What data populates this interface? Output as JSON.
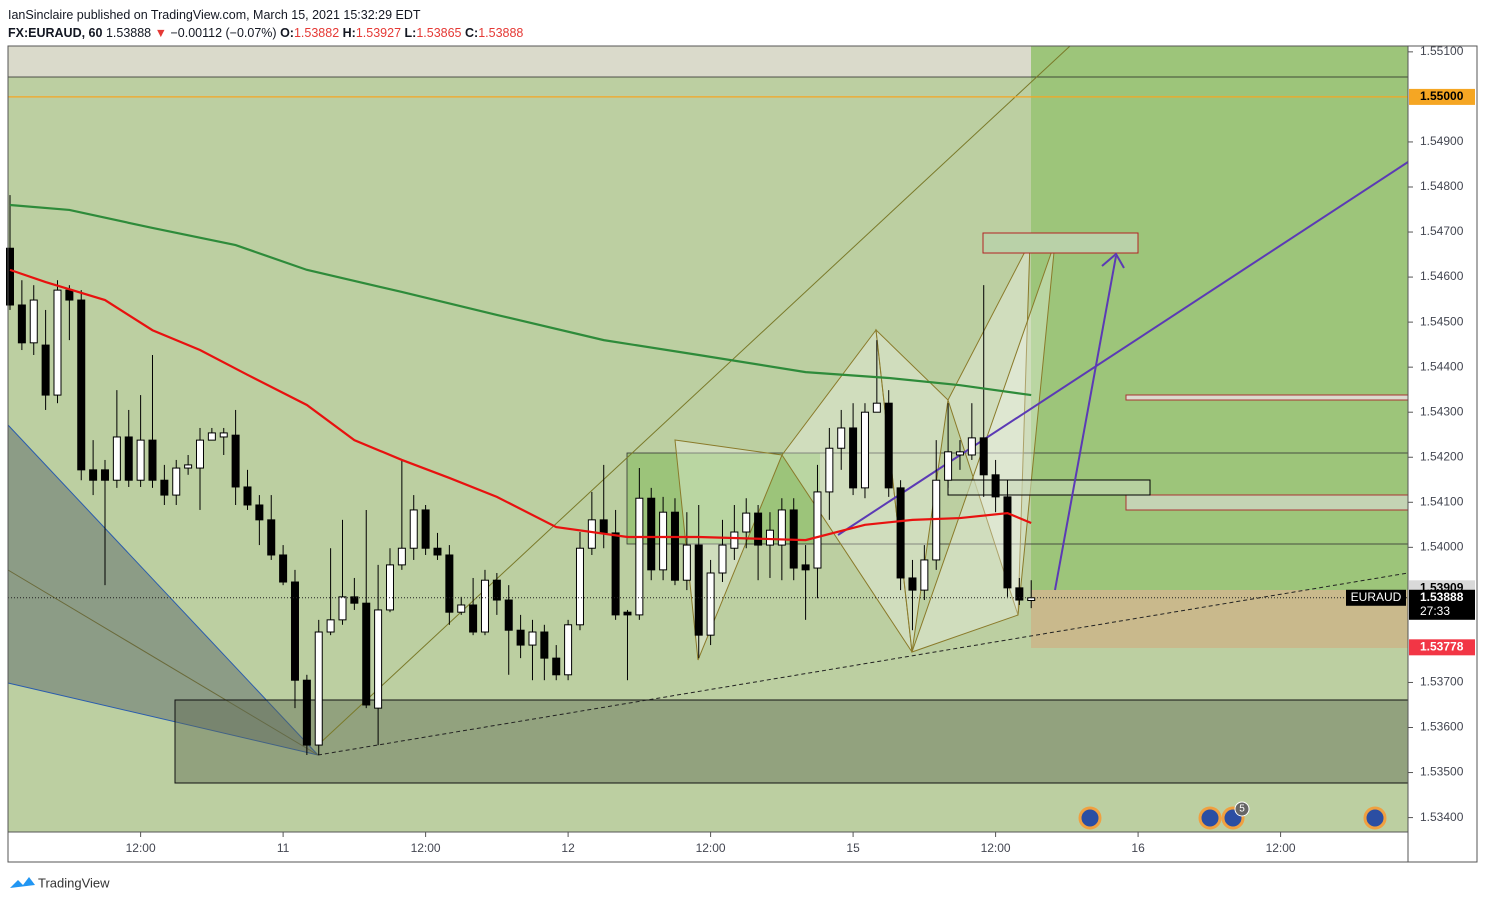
{
  "header": {
    "publisher": "IanSinclaire published on TradingView.com, March 15, 2021 15:32:29 EDT",
    "symbol": "FX:EURAUD, 60",
    "arrow": "▼",
    "change": "−0.00112 (−0.07%)",
    "o_label": "O:",
    "h_label": "H:",
    "l_label": "L:",
    "c_label": "C:"
  },
  "chart_data": {
    "type": "candlestick",
    "candles": [
      [
        1.54664,
        1.54782,
        1.54527,
        1.54538
      ],
      [
        1.54538,
        1.54593,
        1.54438,
        1.54454
      ],
      [
        1.54454,
        1.54582,
        1.54427,
        1.54549
      ],
      [
        1.54449,
        1.54527,
        1.54305,
        1.54338
      ],
      [
        1.54338,
        1.54593,
        1.5432,
        1.54571
      ],
      [
        1.54571,
        1.54582,
        1.5446,
        1.54549
      ],
      [
        1.54549,
        1.54571,
        1.54149,
        1.54172
      ],
      [
        1.54172,
        1.54238,
        1.54116,
        1.54149
      ],
      [
        1.54172,
        1.54194,
        1.53916,
        1.54149
      ],
      [
        1.54149,
        1.54349,
        1.54132,
        1.54245
      ],
      [
        1.54245,
        1.54305,
        1.54134,
        1.54149
      ],
      [
        1.54149,
        1.54338,
        1.54134,
        1.54238
      ],
      [
        1.54238,
        1.54427,
        1.54132,
        1.54149
      ],
      [
        1.54149,
        1.54183,
        1.54094,
        1.54116
      ],
      [
        1.54116,
        1.54194,
        1.54094,
        1.54176
      ],
      [
        1.54176,
        1.54205,
        1.54161,
        1.54183
      ],
      [
        1.54176,
        1.54265,
        1.54083,
        1.54238
      ],
      [
        1.54238,
        1.54265,
        1.54238,
        1.54254
      ],
      [
        1.54245,
        1.54265,
        1.54205,
        1.54254
      ],
      [
        1.54249,
        1.54305,
        1.54094,
        1.54134
      ],
      [
        1.54134,
        1.54172,
        1.54083,
        1.54094
      ],
      [
        1.54094,
        1.54116,
        1.54005,
        1.54061
      ],
      [
        1.54061,
        1.54116,
        1.53972,
        1.53983
      ],
      [
        1.53983,
        1.54005,
        1.53916,
        1.53923
      ],
      [
        1.53923,
        1.5395,
        1.53643,
        1.53705
      ],
      [
        1.53705,
        1.53717,
        1.53539,
        1.53561
      ],
      [
        1.53561,
        1.53839,
        1.53539,
        1.53812
      ],
      [
        1.53812,
        1.53998,
        1.53805,
        1.53839
      ],
      [
        1.53839,
        1.54061,
        1.53828,
        1.5389
      ],
      [
        1.5389,
        1.53932,
        1.53861,
        1.53876
      ],
      [
        1.53876,
        1.54083,
        1.53643,
        1.5365
      ],
      [
        1.53643,
        1.53961,
        1.53561,
        1.53861
      ],
      [
        1.53861,
        1.53998,
        1.53856,
        1.53961
      ],
      [
        1.53961,
        1.54194,
        1.5395,
        1.53998
      ],
      [
        1.53998,
        1.54116,
        1.53972,
        1.54083
      ],
      [
        1.54083,
        1.54094,
        1.53983,
        1.53998
      ],
      [
        1.53998,
        1.54032,
        1.53972,
        1.53983
      ],
      [
        1.53983,
        1.54005,
        1.53828,
        1.53856
      ],
      [
        1.53856,
        1.5389,
        1.5385,
        1.53872
      ],
      [
        1.53872,
        1.53932,
        1.53805,
        1.53812
      ],
      [
        1.53812,
        1.5395,
        1.53805,
        1.53927
      ],
      [
        1.53927,
        1.53943,
        1.5385,
        1.53883
      ],
      [
        1.53883,
        1.53916,
        1.53717,
        1.53816
      ],
      [
        1.53816,
        1.5385,
        1.53754,
        1.53783
      ],
      [
        1.53783,
        1.53839,
        1.53705,
        1.53812
      ],
      [
        1.53812,
        1.53828,
        1.53705,
        1.53754
      ],
      [
        1.53754,
        1.53783,
        1.53705,
        1.53717
      ],
      [
        1.53717,
        1.53839,
        1.53705,
        1.53828
      ],
      [
        1.53828,
        1.54034,
        1.53816,
        1.53998
      ],
      [
        1.53998,
        1.54123,
        1.53983,
        1.54061
      ],
      [
        1.54061,
        1.54183,
        1.53998,
        1.54032
      ],
      [
        1.54032,
        1.54083,
        1.53839,
        1.5385
      ],
      [
        1.53856,
        1.53861,
        1.53705,
        1.5385
      ],
      [
        1.5385,
        1.54176,
        1.53839,
        1.54109
      ],
      [
        1.54109,
        1.54132,
        1.53927,
        1.5395
      ],
      [
        1.5395,
        1.54112,
        1.53927,
        1.54078
      ],
      [
        1.54078,
        1.54109,
        1.53916,
        1.53927
      ],
      [
        1.53927,
        1.54078,
        1.53905,
        1.54005
      ],
      [
        1.54005,
        1.54094,
        1.53754,
        1.53805
      ],
      [
        1.53805,
        1.53972,
        1.53783,
        1.53943
      ],
      [
        1.53943,
        1.54061,
        1.53923,
        1.54005
      ],
      [
        1.53998,
        1.54094,
        1.53972,
        1.54034
      ],
      [
        1.54034,
        1.54109,
        1.53998,
        1.54076
      ],
      [
        1.54076,
        1.54094,
        1.53927,
        1.54005
      ],
      [
        1.54005,
        1.54078,
        1.53932,
        1.54038
      ],
      [
        1.54005,
        1.54109,
        1.53927,
        1.54083
      ],
      [
        1.54083,
        1.54109,
        1.53927,
        1.53954
      ],
      [
        1.53961,
        1.54005,
        1.53839,
        1.5395
      ],
      [
        1.53954,
        1.54183,
        1.53887,
        1.54123
      ],
      [
        1.54123,
        1.54265,
        1.54061,
        1.5422
      ],
      [
        1.5422,
        1.54305,
        1.54172,
        1.54265
      ],
      [
        1.54265,
        1.5432,
        1.54116,
        1.54132
      ],
      [
        1.54132,
        1.5432,
        1.54109,
        1.543
      ],
      [
        1.543,
        1.5446,
        1.543,
        1.5432
      ],
      [
        1.5432,
        1.54349,
        1.54112,
        1.54132
      ],
      [
        1.54132,
        1.54149,
        1.53905,
        1.53932
      ],
      [
        1.53932,
        1.53972,
        1.53816,
        1.53905
      ],
      [
        1.53905,
        1.54005,
        1.53883,
        1.53972
      ],
      [
        1.53972,
        1.54238,
        1.5395,
        1.54149
      ],
      [
        1.54149,
        1.5432,
        1.54132,
        1.54212
      ],
      [
        1.54205,
        1.54238,
        1.54172,
        1.54212
      ],
      [
        1.54205,
        1.5432,
        1.54194,
        1.54243
      ],
      [
        1.54243,
        1.54582,
        1.54112,
        1.54161
      ],
      [
        1.54161,
        1.54194,
        1.54078,
        1.54112
      ],
      [
        1.54112,
        1.54149,
        1.5389,
        1.5391
      ],
      [
        1.5391,
        1.53932,
        1.53872,
        1.53883
      ],
      [
        1.53882,
        1.53927,
        1.53865,
        1.53888
      ]
    ],
    "up_color": "#ffffff",
    "down_color": "#000000",
    "moving_averages": [
      {
        "color": "#2e8b3a",
        "x": [
          0,
          5,
          12,
          19,
          25,
          33,
          41,
          50,
          58,
          67,
          74,
          80,
          86
        ],
        "values": [
          1.5476,
          1.54749,
          1.54709,
          1.54671,
          1.54616,
          1.54567,
          1.54516,
          1.5446,
          1.54427,
          1.54389,
          1.54376,
          1.5436,
          1.54338
        ]
      },
      {
        "color": "#e8110f",
        "x": [
          0,
          3,
          8,
          12,
          16,
          20,
          25,
          29,
          33,
          37,
          41,
          46,
          52,
          58,
          67,
          72,
          76,
          80,
          84,
          86
        ],
        "values": [
          1.54616,
          1.54589,
          1.54549,
          1.54482,
          1.54438,
          1.54383,
          1.54316,
          1.54238,
          1.54194,
          1.54154,
          1.54112,
          1.54045,
          1.54023,
          1.54023,
          1.54016,
          1.5405,
          1.54061,
          1.54065,
          1.54076,
          1.54054
        ]
      }
    ],
    "xlim": [
      -0.168,
      117.73
    ],
    "xticks": [
      {
        "value": 11,
        "label": "12:00"
      },
      {
        "value": 23,
        "label": "11"
      },
      {
        "value": 35,
        "label": "12:00"
      },
      {
        "value": 47,
        "label": "12"
      },
      {
        "value": 59,
        "label": "12:00"
      },
      {
        "value": 71,
        "label": "15"
      },
      {
        "value": 83,
        "label": "12:00"
      },
      {
        "value": 95,
        "label": "16"
      },
      {
        "value": 107,
        "label": "12:00"
      }
    ],
    "ylim": [
      1.53368,
      1.55113
    ],
    "yticks": [
      {
        "value": 1.551,
        "label": "1.55100"
      },
      {
        "value": 1.549,
        "label": "1.54900"
      },
      {
        "value": 1.548,
        "label": "1.54800"
      },
      {
        "value": 1.547,
        "label": "1.54700"
      },
      {
        "value": 1.546,
        "label": "1.54600"
      },
      {
        "value": 1.545,
        "label": "1.54500"
      },
      {
        "value": 1.544,
        "label": "1.54400"
      },
      {
        "value": 1.543,
        "label": "1.54300"
      },
      {
        "value": 1.542,
        "label": "1.54200"
      },
      {
        "value": 1.541,
        "label": "1.54100"
      },
      {
        "value": 1.54,
        "label": "1.54000"
      },
      {
        "value": 1.537,
        "label": "1.53700"
      },
      {
        "value": 1.536,
        "label": "1.53600"
      },
      {
        "value": 1.535,
        "label": "1.53500"
      },
      {
        "value": 1.534,
        "label": "1.53400"
      }
    ],
    "price_labels": [
      {
        "value": 1.55,
        "label": "1.55000",
        "color": "#f5a623",
        "text_color": "#000000"
      },
      {
        "value": 1.53909,
        "label": "1.53909",
        "color": "#d9d9d9",
        "text_color": "#000000"
      },
      {
        "value": 1.53778,
        "label": "1.53778",
        "color": "#f23645",
        "text_color": "#ffffff"
      }
    ],
    "symbol_tag": "EURAUD",
    "countdown": "27:33",
    "event_count": "5"
  },
  "footer": {
    "brand": "TradingView"
  }
}
